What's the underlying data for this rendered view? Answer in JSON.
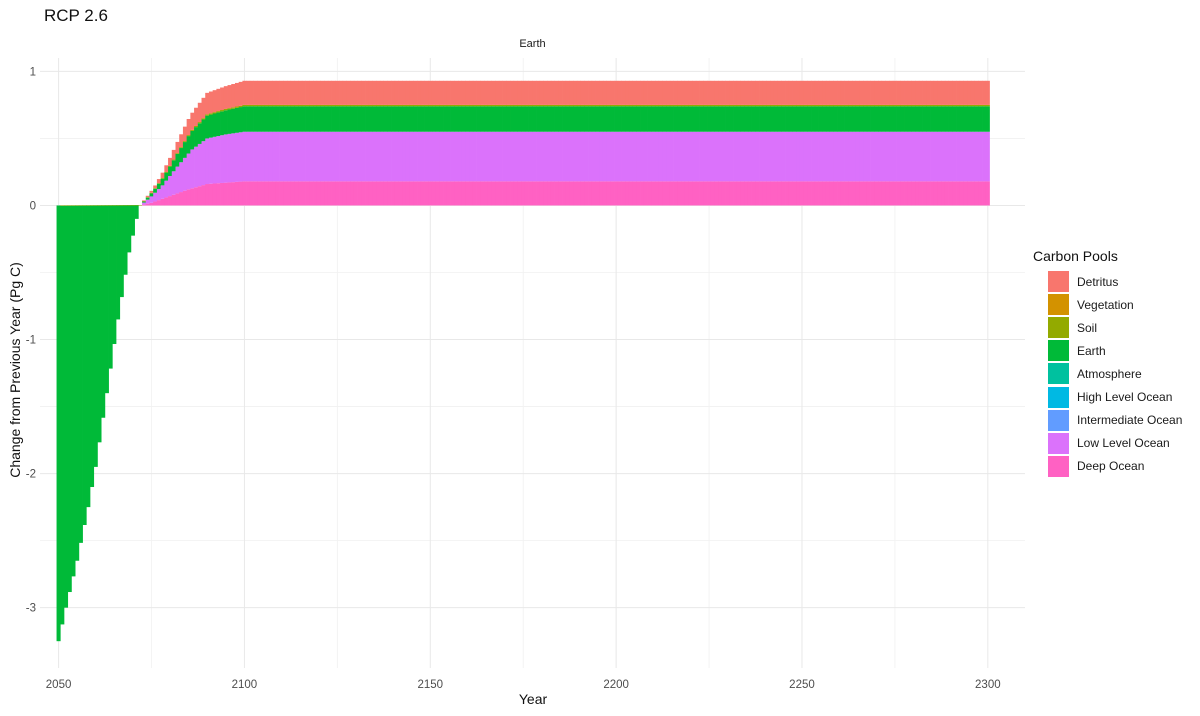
{
  "chart_data": {
    "type": "bar",
    "stacked": true,
    "title": "RCP 2.6",
    "facet": "Earth",
    "xlabel": "Year",
    "ylabel": "Change from Previous Year (Pg C)",
    "xlim": [
      2045,
      2310
    ],
    "ylim": [
      -3.45,
      1.1
    ],
    "x_ticks": [
      2050,
      2100,
      2150,
      2200,
      2250,
      2300
    ],
    "y_ticks": [
      1,
      0,
      -1,
      -2,
      -3
    ],
    "legend_title": "Carbon Pools",
    "legend_position": "right",
    "grid": true,
    "series": [
      {
        "name": "Detritus",
        "color": "#F8766D",
        "profile": [
          [
            2050,
            0
          ],
          [
            2072,
            0
          ],
          [
            2076,
            0.02
          ],
          [
            2080,
            0.06
          ],
          [
            2085,
            0.12
          ],
          [
            2090,
            0.16
          ],
          [
            2100,
            0.18
          ],
          [
            2300,
            0.18
          ]
        ]
      },
      {
        "name": "Vegetation",
        "color": "#D39200",
        "profile": [
          [
            2050,
            0
          ],
          [
            2300,
            0
          ]
        ]
      },
      {
        "name": "Soil",
        "color": "#93AA00",
        "profile": [
          [
            2050,
            0
          ],
          [
            2080,
            0.005
          ],
          [
            2090,
            0.01
          ],
          [
            2300,
            0.01
          ]
        ]
      },
      {
        "name": "Earth",
        "color": "#00BA38",
        "profile": [
          [
            2050,
            -3.25
          ],
          [
            2052,
            -3.0
          ],
          [
            2055,
            -2.65
          ],
          [
            2058,
            -2.25
          ],
          [
            2060,
            -1.95
          ],
          [
            2063,
            -1.4
          ],
          [
            2066,
            -0.85
          ],
          [
            2069,
            -0.35
          ],
          [
            2071,
            -0.1
          ],
          [
            2072,
            0
          ],
          [
            2076,
            0.03
          ],
          [
            2080,
            0.07
          ],
          [
            2085,
            0.13
          ],
          [
            2090,
            0.17
          ],
          [
            2100,
            0.19
          ],
          [
            2300,
            0.19
          ]
        ]
      },
      {
        "name": "Atmosphere",
        "color": "#00C19F",
        "profile": [
          [
            2050,
            0
          ],
          [
            2300,
            0
          ]
        ]
      },
      {
        "name": "High Level Ocean",
        "color": "#00B9E3",
        "profile": [
          [
            2050,
            0
          ],
          [
            2300,
            0
          ]
        ]
      },
      {
        "name": "Intermediate Ocean",
        "color": "#619CFF",
        "profile": [
          [
            2050,
            0
          ],
          [
            2300,
            0
          ]
        ]
      },
      {
        "name": "Low Level Ocean",
        "color": "#DB72FB",
        "profile": [
          [
            2050,
            0
          ],
          [
            2072,
            0
          ],
          [
            2074,
            0.03
          ],
          [
            2078,
            0.1
          ],
          [
            2082,
            0.2
          ],
          [
            2086,
            0.29
          ],
          [
            2090,
            0.34
          ],
          [
            2095,
            0.36
          ],
          [
            2100,
            0.37
          ],
          [
            2300,
            0.37
          ]
        ]
      },
      {
        "name": "Deep Ocean",
        "color": "#FF61C3",
        "profile": [
          [
            2050,
            0
          ],
          [
            2072,
            0
          ],
          [
            2075,
            0.02
          ],
          [
            2080,
            0.07
          ],
          [
            2085,
            0.12
          ],
          [
            2090,
            0.16
          ],
          [
            2095,
            0.17
          ],
          [
            2100,
            0.18
          ],
          [
            2300,
            0.18
          ]
        ]
      }
    ]
  }
}
